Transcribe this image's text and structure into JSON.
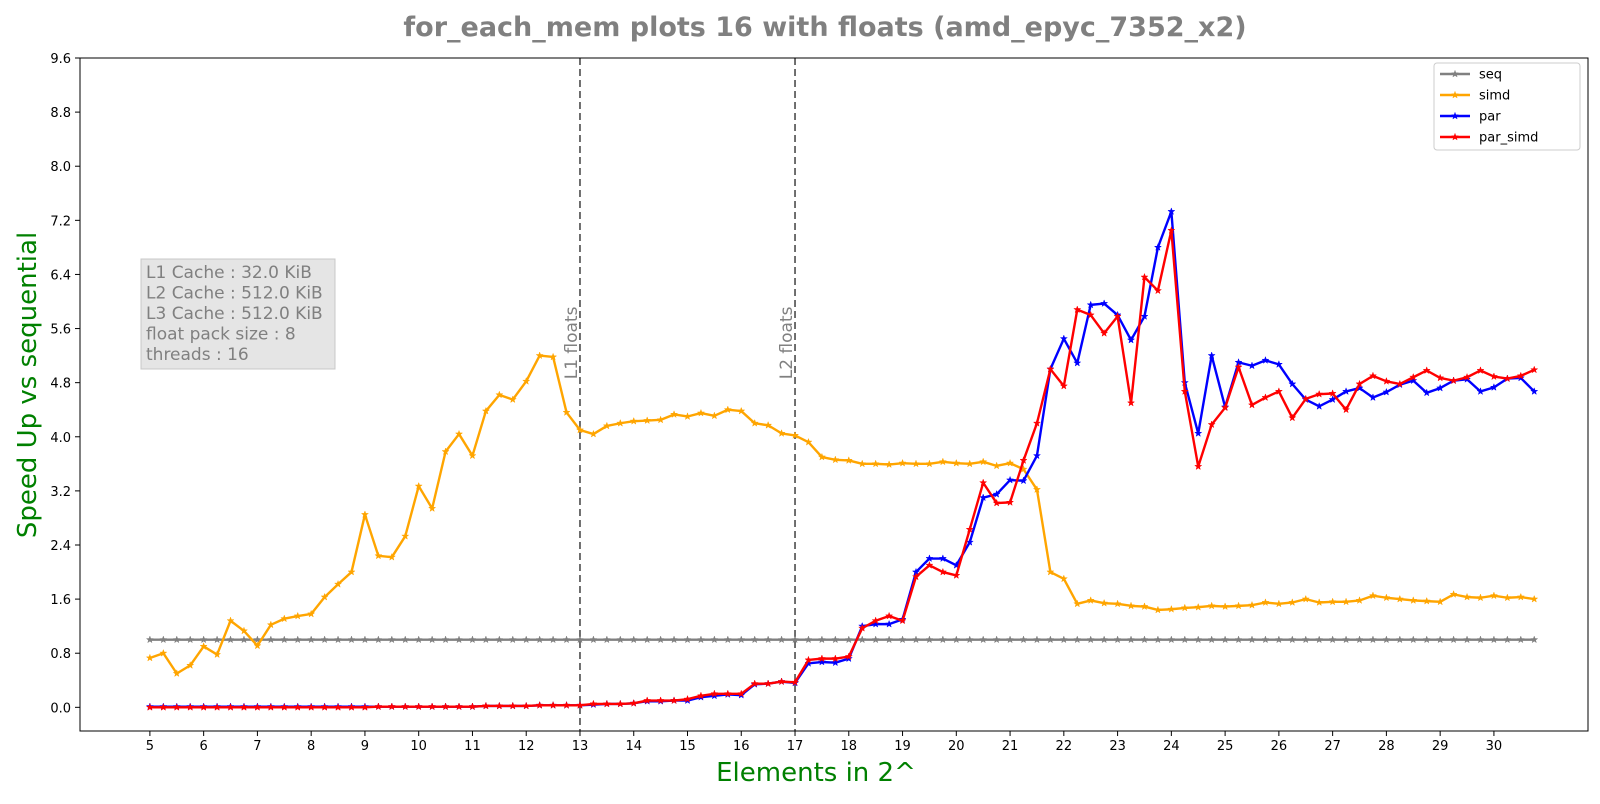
{
  "chart_data": {
    "type": "line",
    "title": "for_each_mem plots 16 with floats  (amd_epyc_7352_x2)",
    "xlabel": "Elements in 2^",
    "ylabel": "Speed Up vs sequential",
    "xlim": [
      3.7,
      31.75
    ],
    "ylim": [
      -0.35,
      9.6
    ],
    "xticks": [
      5,
      6,
      7,
      8,
      9,
      10,
      11,
      12,
      13,
      14,
      15,
      16,
      17,
      18,
      19,
      20,
      21,
      22,
      23,
      24,
      25,
      26,
      27,
      28,
      29,
      30
    ],
    "yticks": [
      0.0,
      0.8,
      1.6,
      2.4,
      3.2,
      4.0,
      4.8,
      5.6,
      6.4,
      7.2,
      8.0,
      8.8,
      9.6
    ],
    "grid": false,
    "legend_position": "top-right",
    "x": [
      5.0,
      5.25,
      5.5,
      5.75,
      6.0,
      6.25,
      6.5,
      6.75,
      7.0,
      7.25,
      7.5,
      7.75,
      8.0,
      8.25,
      8.5,
      8.75,
      9.0,
      9.25,
      9.5,
      9.75,
      10.0,
      10.25,
      10.5,
      10.75,
      11.0,
      11.25,
      11.5,
      11.75,
      12.0,
      12.25,
      12.5,
      12.75,
      13.0,
      13.25,
      13.5,
      13.75,
      14.0,
      14.25,
      14.5,
      14.75,
      15.0,
      15.25,
      15.5,
      15.75,
      16.0,
      16.25,
      16.5,
      16.75,
      17.0,
      17.25,
      17.5,
      17.75,
      18.0,
      18.25,
      18.5,
      18.75,
      19.0,
      19.25,
      19.5,
      19.75,
      20.0,
      20.25,
      20.5,
      20.75,
      21.0,
      21.25,
      21.5,
      21.75,
      22.0,
      22.25,
      22.5,
      22.75,
      23.0,
      23.25,
      23.5,
      23.75,
      24.0,
      24.25,
      24.5,
      24.75,
      25.0,
      25.25,
      25.5,
      25.75,
      26.0,
      26.25,
      26.5,
      26.75,
      27.0,
      27.25,
      27.5,
      27.75,
      28.0,
      28.25,
      28.5,
      28.75,
      29.0,
      29.25,
      29.5,
      29.75,
      30.0,
      30.25,
      30.5,
      30.75
    ],
    "series": [
      {
        "name": "seq",
        "color": "#808080",
        "values": [
          1.0,
          1.0,
          1.0,
          1.0,
          1.0,
          1.0,
          1.0,
          1.0,
          1.0,
          1.0,
          1.0,
          1.0,
          1.0,
          1.0,
          1.0,
          1.0,
          1.0,
          1.0,
          1.0,
          1.0,
          1.0,
          1.0,
          1.0,
          1.0,
          1.0,
          1.0,
          1.0,
          1.0,
          1.0,
          1.0,
          1.0,
          1.0,
          1.0,
          1.0,
          1.0,
          1.0,
          1.0,
          1.0,
          1.0,
          1.0,
          1.0,
          1.0,
          1.0,
          1.0,
          1.0,
          1.0,
          1.0,
          1.0,
          1.0,
          1.0,
          1.0,
          1.0,
          1.0,
          1.0,
          1.0,
          1.0,
          1.0,
          1.0,
          1.0,
          1.0,
          1.0,
          1.0,
          1.0,
          1.0,
          1.0,
          1.0,
          1.0,
          1.0,
          1.0,
          1.0,
          1.0,
          1.0,
          1.0,
          1.0,
          1.0,
          1.0,
          1.0,
          1.0,
          1.0,
          1.0,
          1.0,
          1.0,
          1.0,
          1.0,
          1.0,
          1.0,
          1.0,
          1.0,
          1.0,
          1.0,
          1.0,
          1.0,
          1.0,
          1.0,
          1.0,
          1.0,
          1.0,
          1.0,
          1.0,
          1.0,
          1.0,
          1.0,
          1.0,
          1.0
        ]
      },
      {
        "name": "simd",
        "color": "#ffa500",
        "values": [
          0.73,
          0.8,
          0.5,
          0.62,
          0.9,
          0.78,
          1.28,
          1.13,
          0.91,
          1.22,
          1.31,
          1.35,
          1.38,
          1.63,
          1.82,
          2.0,
          2.85,
          2.24,
          2.22,
          2.53,
          3.27,
          2.94,
          3.78,
          4.04,
          3.72,
          4.38,
          4.62,
          4.55,
          4.82,
          5.2,
          5.18,
          4.36,
          4.1,
          4.04,
          4.16,
          4.2,
          4.23,
          4.24,
          4.25,
          4.33,
          4.3,
          4.35,
          4.31,
          4.4,
          4.38,
          4.2,
          4.17,
          4.05,
          4.02,
          3.92,
          3.7,
          3.66,
          3.65,
          3.6,
          3.6,
          3.59,
          3.61,
          3.6,
          3.6,
          3.63,
          3.61,
          3.6,
          3.63,
          3.57,
          3.61,
          3.52,
          3.22,
          2.0,
          1.9,
          1.53,
          1.58,
          1.54,
          1.53,
          1.5,
          1.49,
          1.44,
          1.45,
          1.47,
          1.48,
          1.5,
          1.49,
          1.5,
          1.51,
          1.55,
          1.53,
          1.55,
          1.6,
          1.55,
          1.56,
          1.56,
          1.58,
          1.65,
          1.62,
          1.6,
          1.58,
          1.57,
          1.56,
          1.67,
          1.63,
          1.62,
          1.65,
          1.62,
          1.63,
          1.6
        ]
      },
      {
        "name": "par",
        "color": "#0000ff",
        "values": [
          0.01,
          0.01,
          0.01,
          0.01,
          0.01,
          0.01,
          0.01,
          0.01,
          0.01,
          0.01,
          0.01,
          0.01,
          0.01,
          0.01,
          0.01,
          0.01,
          0.01,
          0.01,
          0.01,
          0.01,
          0.01,
          0.01,
          0.01,
          0.01,
          0.01,
          0.02,
          0.02,
          0.02,
          0.02,
          0.03,
          0.03,
          0.03,
          0.03,
          0.04,
          0.05,
          0.05,
          0.06,
          0.09,
          0.09,
          0.1,
          0.1,
          0.15,
          0.17,
          0.19,
          0.18,
          0.34,
          0.35,
          0.38,
          0.36,
          0.65,
          0.67,
          0.66,
          0.72,
          1.2,
          1.23,
          1.23,
          1.3,
          2.0,
          2.2,
          2.2,
          2.1,
          2.44,
          3.1,
          3.15,
          3.36,
          3.35,
          3.72,
          5.0,
          5.45,
          5.09,
          5.95,
          5.97,
          5.8,
          5.43,
          5.78,
          6.8,
          7.33,
          4.8,
          4.05,
          5.2,
          4.44,
          5.1,
          5.05,
          5.13,
          5.07,
          4.78,
          4.55,
          4.45,
          4.55,
          4.67,
          4.72,
          4.58,
          4.66,
          4.77,
          4.83,
          4.65,
          4.72,
          4.83,
          4.85,
          4.67,
          4.73,
          4.86,
          4.87,
          4.67
        ]
      },
      {
        "name": "par_simd",
        "color": "#ff0000",
        "values": [
          0.0,
          0.0,
          0.0,
          0.0,
          0.0,
          0.0,
          0.0,
          0.0,
          0.0,
          0.0,
          0.0,
          0.0,
          0.0,
          0.0,
          0.0,
          0.0,
          0.0,
          0.01,
          0.01,
          0.01,
          0.01,
          0.01,
          0.01,
          0.01,
          0.01,
          0.02,
          0.02,
          0.02,
          0.02,
          0.03,
          0.03,
          0.03,
          0.03,
          0.05,
          0.05,
          0.05,
          0.06,
          0.1,
          0.1,
          0.1,
          0.12,
          0.17,
          0.2,
          0.2,
          0.2,
          0.35,
          0.35,
          0.38,
          0.37,
          0.7,
          0.72,
          0.72,
          0.75,
          1.17,
          1.28,
          1.35,
          1.28,
          1.93,
          2.1,
          2.0,
          1.95,
          2.63,
          3.32,
          3.02,
          3.03,
          3.65,
          4.2,
          5.0,
          4.75,
          5.88,
          5.8,
          5.53,
          5.78,
          4.5,
          6.36,
          6.16,
          7.05,
          4.67,
          3.56,
          4.18,
          4.43,
          5.03,
          4.47,
          4.58,
          4.67,
          4.28,
          4.56,
          4.63,
          4.64,
          4.4,
          4.78,
          4.9,
          4.82,
          4.78,
          4.88,
          4.98,
          4.87,
          4.83,
          4.88,
          4.98,
          4.89,
          4.86,
          4.9,
          4.99
        ]
      }
    ],
    "vlines": [
      {
        "x": 13,
        "label": "L1 floats"
      },
      {
        "x": 17,
        "label": "L2 floats"
      }
    ],
    "info_box": [
      "L1 Cache : 32.0 KiB",
      "L2 Cache : 512.0 KiB",
      "L3 Cache : 512.0 KiB",
      "float pack size : 8",
      "threads : 16"
    ],
    "colors": {
      "title": "#808080",
      "axis_label": "#008000",
      "vline": "#606060",
      "info_text": "#808080",
      "info_bg": "#e5e5e5"
    }
  }
}
